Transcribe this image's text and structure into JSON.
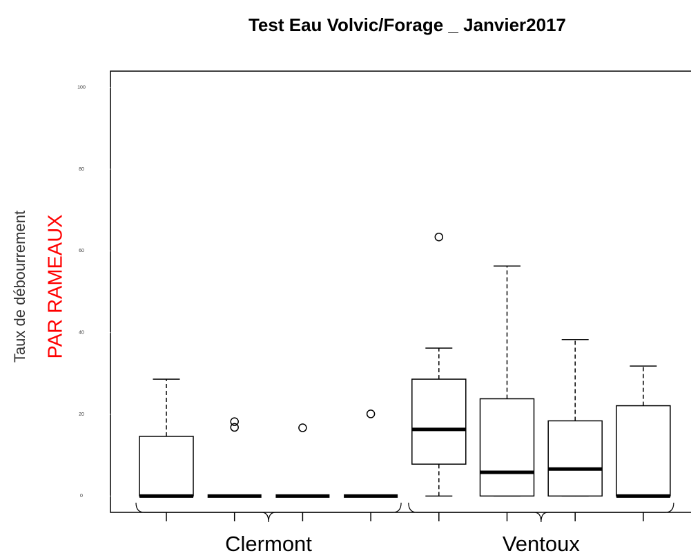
{
  "chart_data": {
    "type": "boxplot",
    "title": "Test Eau Volvic/Forage _ Janvier2017",
    "y_label": "Taux de débourrement",
    "annotation": "PAR RAMEAUX",
    "categories": [
      null,
      null,
      null,
      null,
      null,
      null,
      null,
      null
    ],
    "groups": [
      "Clermont",
      "Ventoux"
    ],
    "boxes": [
      {
        "min": 0,
        "q1": 0,
        "median": 0,
        "q3": 14.6,
        "max": 28.6,
        "outliers": []
      },
      {
        "min": 0,
        "q1": 0,
        "median": 0,
        "q3": 0,
        "max": 0,
        "outliers": [
          18.2,
          16.8
        ]
      },
      {
        "min": 0,
        "q1": 0,
        "median": 0,
        "q3": 0,
        "max": 0,
        "outliers": [
          16.7
        ]
      },
      {
        "min": 0,
        "q1": 0,
        "median": 0,
        "q3": 0,
        "max": 0,
        "outliers": [
          20.1
        ]
      },
      {
        "min": 0,
        "q1": 7.8,
        "median": 16.3,
        "q3": 28.6,
        "max": 36.2,
        "outliers": [
          63.4
        ]
      },
      {
        "min": 0,
        "q1": 0,
        "median": 5.8,
        "q3": 23.8,
        "max": 56.3,
        "outliers": []
      },
      {
        "min": 0,
        "q1": 0,
        "median": 6.6,
        "q3": 18.4,
        "max": 38.3,
        "outliers": []
      },
      {
        "min": 0,
        "q1": 0,
        "median": 0,
        "q3": 22.1,
        "max": 31.8,
        "outliers": []
      }
    ],
    "color": "#000000",
    "annotation_color": "#ff0000",
    "ylim": [
      -4,
      104
    ],
    "yticks": [
      0,
      20,
      40,
      60,
      80,
      100
    ]
  }
}
